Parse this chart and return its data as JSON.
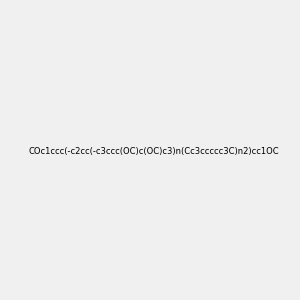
{
  "smiles": "COc1ccc(-c2cc(-c3ccc(OC)c(OC)c3)n(Cc3ccccc3C)n2)cc1OC",
  "background_color": "#f0f0f0",
  "bond_color": "#000000",
  "nitrogen_color": "#0000ff",
  "oxygen_color": "#ff0000",
  "figsize": [
    3.0,
    3.0
  ],
  "dpi": 100
}
